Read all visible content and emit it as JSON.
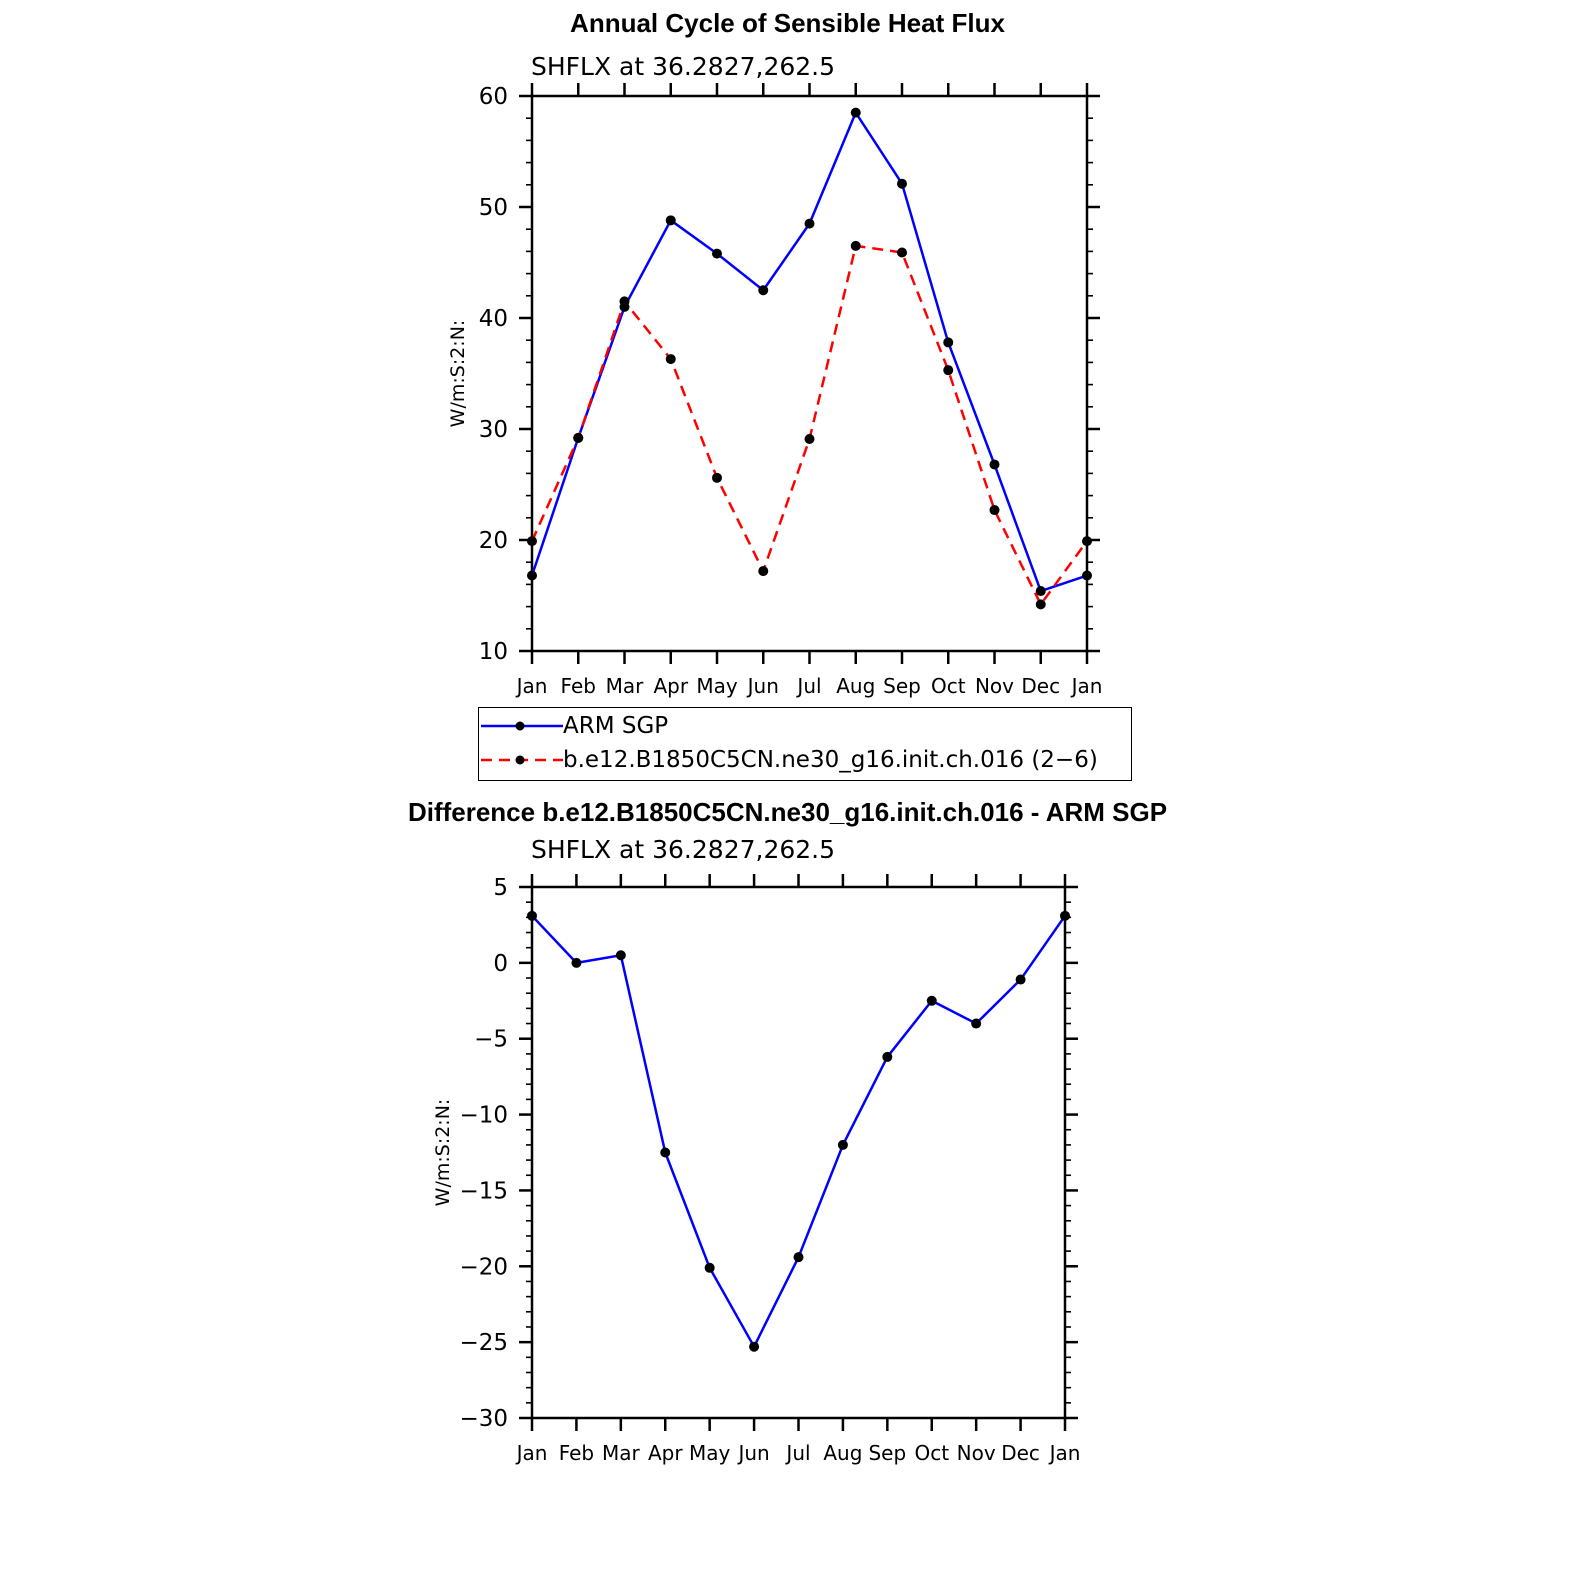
{
  "chart_data": [
    {
      "type": "line",
      "title": "Annual Cycle of Sensible Heat Flux",
      "subtitle": "SHFLX at 36.2827,262.5",
      "ylabel": "W/m:S:2:N:",
      "xlabel": "",
      "categories": [
        "Jan",
        "Feb",
        "Mar",
        "Apr",
        "May",
        "Jun",
        "Jul",
        "Aug",
        "Sep",
        "Oct",
        "Nov",
        "Dec",
        "Jan"
      ],
      "ylim": [
        10,
        60
      ],
      "yticks": [
        10,
        20,
        30,
        40,
        50,
        60
      ],
      "series": [
        {
          "name": "ARM SGP",
          "color": "#0000ff",
          "dash": "solid",
          "values": [
            16.8,
            29.2,
            41.0,
            48.8,
            45.8,
            42.5,
            48.5,
            58.5,
            52.1,
            37.8,
            26.8,
            15.4,
            16.8
          ]
        },
        {
          "name": "b.e12.B1850C5CN.ne30_g16.init.ch.016 (2−6)",
          "color": "#ff0000",
          "dash": "dashed",
          "values": [
            19.9,
            29.2,
            41.5,
            36.3,
            25.6,
            17.2,
            29.1,
            46.5,
            45.9,
            35.3,
            22.7,
            14.2,
            19.9
          ]
        }
      ],
      "legend": "below"
    },
    {
      "type": "line",
      "title": "Difference b.e12.B1850C5CN.ne30_g16.init.ch.016 - ARM SGP",
      "subtitle": "SHFLX at 36.2827,262.5",
      "ylabel": "W/m:S:2:N:",
      "xlabel": "",
      "categories": [
        "Jan",
        "Feb",
        "Mar",
        "Apr",
        "May",
        "Jun",
        "Jul",
        "Aug",
        "Sep",
        "Oct",
        "Nov",
        "Dec",
        "Jan"
      ],
      "ylim": [
        -30,
        5
      ],
      "yticks": [
        5,
        0,
        -5,
        -10,
        -15,
        -20,
        -25,
        -30
      ],
      "ytick_labels": [
        "5",
        "0",
        "−5",
        "−10",
        "−15",
        "−20",
        "−25",
        "−30"
      ],
      "series": [
        {
          "color": "#0000ff",
          "dash": "solid",
          "values": [
            3.1,
            0.0,
            0.5,
            -12.5,
            -20.1,
            -25.3,
            -19.4,
            -12.0,
            -6.2,
            -2.5,
            -4.0,
            -1.1,
            3.1
          ]
        }
      ]
    }
  ]
}
